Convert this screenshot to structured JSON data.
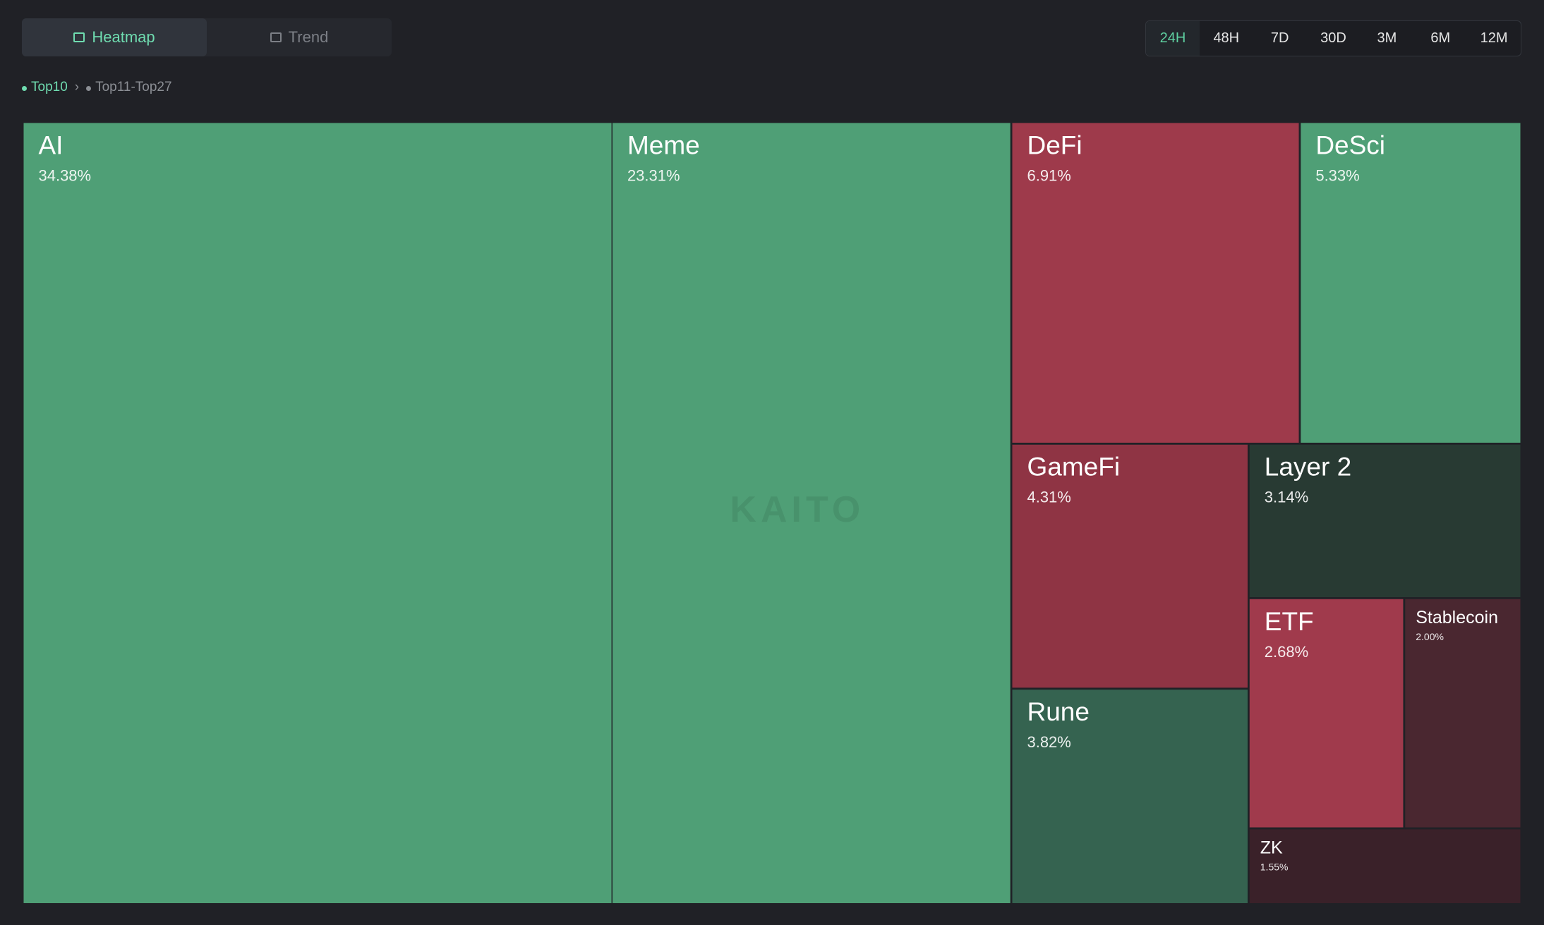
{
  "tabs": [
    "Heatmap",
    "Trend"
  ],
  "timeframes": [
    "24H",
    "48H",
    "7D",
    "30D",
    "3M",
    "6M",
    "12M"
  ],
  "breadcrumb": [
    "Top10",
    "Top11-Top27"
  ],
  "watermark": "KAITO",
  "chart_data": {
    "type": "treemap",
    "categories": [
      "AI",
      "Meme",
      "DeFi",
      "DeSci",
      "GameFi",
      "Layer 2",
      "Rune",
      "ETF",
      "Stablecoin",
      "ZK"
    ],
    "values": [
      34.38,
      23.31,
      6.91,
      5.33,
      4.31,
      3.14,
      3.82,
      2.68,
      2.0,
      1.55
    ],
    "value_labels": [
      "34.38%",
      "23.31%",
      "6.91%",
      "5.33%",
      "4.31%",
      "3.14%",
      "3.82%",
      "2.68%",
      "2.00%",
      "1.55%"
    ],
    "colors": [
      "#4f9f76",
      "#4f9f76",
      "#9e3a4b",
      "#4f9f76",
      "#8f3444",
      "#283a33",
      "#356350",
      "#a03a4c",
      "#4a2730",
      "#3a2129"
    ]
  }
}
